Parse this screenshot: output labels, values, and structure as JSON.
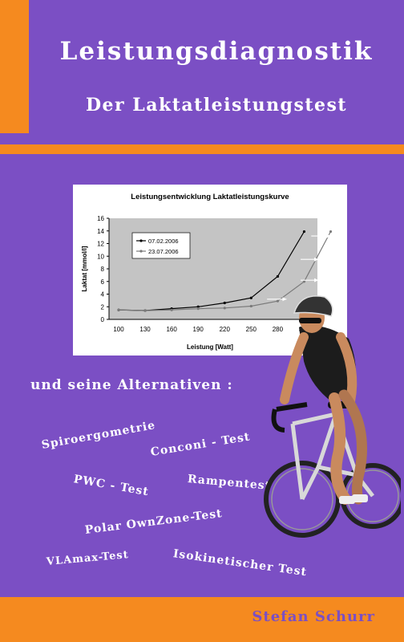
{
  "cover": {
    "title": "Leistungsdiagnostik",
    "subtitle": "Der Laktatleistungstest",
    "alternatives_heading": "und seine Alternativen :",
    "alternatives": [
      "Spiroergometrie",
      "Conconi - Test",
      "PWC - Test",
      "Rampentest",
      "Polar OwnZone-Test",
      "VLAmax-Test",
      "Isokinetischer Test"
    ],
    "author": "Stefan Schurr",
    "colors": {
      "background": "#7b4fc4",
      "accent": "#f58a1f",
      "text": "#ffffff"
    }
  },
  "chart_data": {
    "type": "line",
    "title": "Leistungsentwicklung Laktatleistungskurve",
    "xlabel": "Leistung [Watt]",
    "ylabel": "Laktat [mmol/l]",
    "categories": [
      100,
      130,
      160,
      190,
      220,
      250,
      280,
      310
    ],
    "ylim": [
      0,
      16
    ],
    "yticks": [
      0,
      2,
      4,
      6,
      8,
      10,
      12,
      14,
      16
    ],
    "series": [
      {
        "name": "07.02.2006",
        "x": [
          100,
          130,
          160,
          190,
          220,
          250,
          280,
          310
        ],
        "values": [
          1.5,
          1.4,
          1.7,
          2.0,
          2.6,
          3.4,
          6.8,
          13.9
        ]
      },
      {
        "name": "23.07.2006",
        "x": [
          100,
          130,
          160,
          190,
          220,
          250,
          280,
          310,
          340
        ],
        "values": [
          1.5,
          1.4,
          1.5,
          1.7,
          1.8,
          2.1,
          2.9,
          6.0,
          13.9
        ]
      }
    ],
    "legend": "top-left",
    "grid": false
  }
}
